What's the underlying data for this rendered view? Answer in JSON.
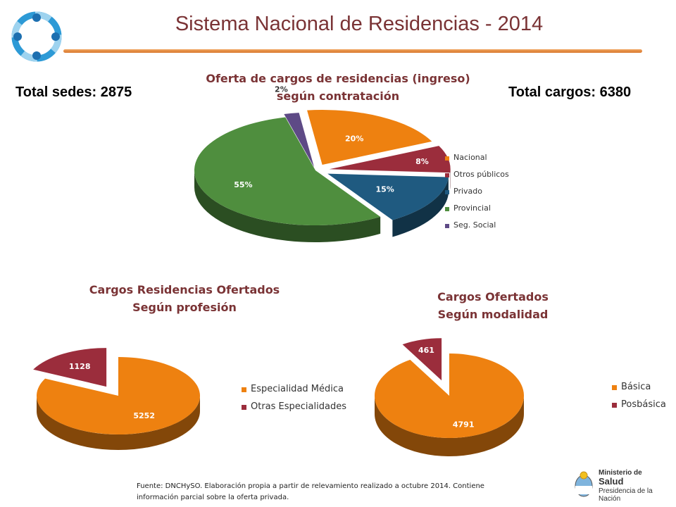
{
  "header": {
    "title": "Sistema Nacional de Residencias - 2014",
    "total_sedes": "Total sedes: 2875",
    "total_cargos": "Total cargos: 6380"
  },
  "chart_data": [
    {
      "type": "pie",
      "title": [
        "Oferta de cargos de residencias (ingreso)",
        "según contratación"
      ],
      "categories": [
        "Nacional",
        "Otros públicos",
        "Privado",
        "Provincial",
        "Seg. Social"
      ],
      "values": [
        20,
        8,
        15,
        55,
        2
      ],
      "labels": [
        "20%",
        "8%",
        "15%",
        "55%",
        "2%"
      ],
      "colors": [
        "#ee8110",
        "#9b2d3c",
        "#1f5a80",
        "#4f8e3e",
        "#5e4a86"
      ],
      "legend_position": "right"
    },
    {
      "type": "pie",
      "title": [
        "Cargos Residencias Ofertados",
        "Según profesión"
      ],
      "categories": [
        "Especialidad Médica",
        "Otras Especialidades"
      ],
      "values": [
        5252,
        1128
      ],
      "labels": [
        "5252",
        "1128"
      ],
      "colors": [
        "#ee8110",
        "#9b2d3c"
      ],
      "legend_position": "right"
    },
    {
      "type": "pie",
      "title": [
        "Cargos Ofertados",
        "Según modalidad"
      ],
      "categories": [
        "Básica",
        "Posbásica"
      ],
      "values": [
        4791,
        461
      ],
      "labels": [
        "4791",
        "461"
      ],
      "colors": [
        "#ee8110",
        "#9b2d3c"
      ],
      "legend_position": "right"
    }
  ],
  "footer": {
    "source_line1": "Fuente: DNCHySO.  Elaboración propia  a partir de relevamiento realizado a octubre  2014. Contiene",
    "source_line2": "información parcial sobre la oferta privada.",
    "ministry_line1": "Ministerio de",
    "ministry_line2": "Salud",
    "ministry_line3": "Presidencia de la Nación"
  }
}
